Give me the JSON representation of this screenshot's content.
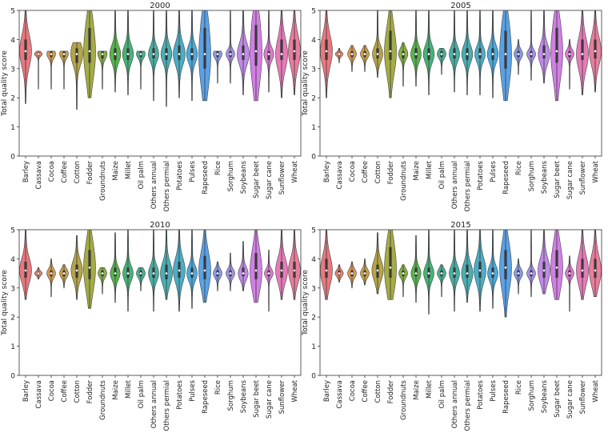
{
  "figure": {
    "ylabel": "Total quality score"
  },
  "chart_data": [
    {
      "type": "violin",
      "title": "2000",
      "ylabel": "Total quality score",
      "ylim": [
        0,
        5
      ],
      "yticks": [
        0,
        1,
        2,
        3,
        4,
        5
      ],
      "grid": false,
      "categories": [
        "Barley",
        "Cassava",
        "Cocoa",
        "Coffee",
        "Cotton",
        "Fodder",
        "Groundnuts",
        "Maize",
        "Millet",
        "Oil palm",
        "Others annual",
        "Others permial",
        "Potatoes",
        "Pulses",
        "Rapeseed",
        "Rice",
        "Sorghum",
        "Soybeans",
        "Sugar beet",
        "Sugar cane",
        "Sunflower",
        "Wheat"
      ],
      "min": [
        1.8,
        2.3,
        2.3,
        2.3,
        1.6,
        2.0,
        2.3,
        2.2,
        2.1,
        2.3,
        1.9,
        1.7,
        2.0,
        1.9,
        1.9,
        2.5,
        2.5,
        2.1,
        1.9,
        2.2,
        2.0,
        2.1
      ],
      "max": [
        5,
        3.6,
        3.6,
        3.6,
        3.9,
        5,
        3.6,
        5,
        5,
        3.6,
        5,
        5,
        5,
        5,
        5,
        3.6,
        5,
        5,
        5,
        5,
        5,
        5
      ],
      "median": [
        3.6,
        3.5,
        3.5,
        3.5,
        3.5,
        3.6,
        3.5,
        3.5,
        3.5,
        3.5,
        3.5,
        3.5,
        3.5,
        3.5,
        3.5,
        3.5,
        3.5,
        3.5,
        3.6,
        3.5,
        3.5,
        3.6
      ],
      "q1": [
        3.3,
        3.45,
        3.4,
        3.4,
        3.2,
        3.2,
        3.35,
        3.3,
        3.3,
        3.4,
        3.35,
        3.3,
        3.3,
        3.3,
        3.0,
        3.4,
        3.4,
        3.3,
        3.1,
        3.3,
        3.3,
        3.3
      ],
      "q3": [
        4.0,
        3.55,
        3.6,
        3.6,
        3.7,
        4.4,
        3.6,
        3.7,
        3.7,
        3.6,
        3.7,
        3.7,
        3.8,
        3.7,
        4.4,
        3.6,
        3.6,
        3.8,
        4.5,
        3.6,
        4.0,
        4.0
      ]
    },
    {
      "type": "violin",
      "title": "2005",
      "ylabel": "Total quality score",
      "ylim": [
        0,
        5
      ],
      "yticks": [
        0,
        1,
        2,
        3,
        4,
        5
      ],
      "grid": false,
      "categories": [
        "Barley",
        "Cassava",
        "Cocoa",
        "Coffee",
        "Cotton",
        "Fodder",
        "Groundnuts",
        "Maize",
        "Millet",
        "Oil palm",
        "Others annual",
        "Others permial",
        "Potatoes",
        "Pulses",
        "Rapeseed",
        "Rice",
        "Sorghum",
        "Soybeans",
        "Sugar beet",
        "Sugar cane",
        "Sunflower",
        "Wheat"
      ],
      "min": [
        2.0,
        3.2,
        2.9,
        2.9,
        2.7,
        2.0,
        2.4,
        2.4,
        2.1,
        2.8,
        2.2,
        2.1,
        2.1,
        2.0,
        1.9,
        2.8,
        2.6,
        2.5,
        1.9,
        2.3,
        2.1,
        2.2
      ],
      "max": [
        5,
        3.7,
        3.8,
        3.8,
        5,
        5,
        3.9,
        5,
        5,
        3.7,
        5,
        5,
        5,
        5,
        5,
        4.0,
        5,
        5,
        5,
        4.0,
        5,
        5
      ],
      "median": [
        3.6,
        3.5,
        3.5,
        3.5,
        3.5,
        3.6,
        3.5,
        3.5,
        3.5,
        3.5,
        3.5,
        3.5,
        3.5,
        3.5,
        3.5,
        3.5,
        3.5,
        3.5,
        3.6,
        3.5,
        3.5,
        3.6
      ],
      "q1": [
        3.3,
        3.45,
        3.4,
        3.4,
        3.35,
        3.3,
        3.35,
        3.35,
        3.3,
        3.4,
        3.35,
        3.3,
        3.35,
        3.3,
        3.0,
        3.4,
        3.4,
        3.35,
        3.2,
        3.4,
        3.3,
        3.35
      ],
      "q3": [
        4.0,
        3.55,
        3.6,
        3.6,
        3.7,
        4.3,
        3.6,
        3.7,
        3.7,
        3.6,
        3.7,
        3.7,
        3.7,
        3.7,
        4.3,
        3.6,
        3.6,
        3.8,
        4.4,
        3.6,
        4.0,
        4.0
      ]
    },
    {
      "type": "violin",
      "title": "2010",
      "ylabel": "Total quality score",
      "ylim": [
        0,
        5
      ],
      "yticks": [
        0,
        1,
        2,
        3,
        4,
        5
      ],
      "grid": false,
      "categories": [
        "Barley",
        "Cassava",
        "Cocoa",
        "Coffee",
        "Cotton",
        "Fodder",
        "Groundnuts",
        "Maize",
        "Millet",
        "Oil palm",
        "Others annual",
        "Others permial",
        "Potatoes",
        "Pulses",
        "Rapeseed",
        "Rice",
        "Sorghum",
        "Soybeans",
        "Sugar beet",
        "Sugar cane",
        "Sunflower",
        "Wheat"
      ],
      "min": [
        2.6,
        3.3,
        2.7,
        3.0,
        2.6,
        2.3,
        2.8,
        2.5,
        2.2,
        2.9,
        2.2,
        2.6,
        2.2,
        2.3,
        2.5,
        2.9,
        2.9,
        2.9,
        2.5,
        2.2,
        2.6,
        2.6
      ],
      "max": [
        5,
        3.7,
        4.0,
        3.8,
        4.8,
        5,
        3.7,
        4.9,
        5,
        3.7,
        5,
        5,
        5,
        5,
        5,
        3.9,
        4.2,
        4.6,
        5,
        4.3,
        5,
        5
      ],
      "median": [
        3.6,
        3.5,
        3.5,
        3.5,
        3.6,
        3.7,
        3.5,
        3.5,
        3.5,
        3.5,
        3.5,
        3.5,
        3.6,
        3.5,
        3.6,
        3.5,
        3.5,
        3.5,
        3.6,
        3.5,
        3.6,
        3.6
      ],
      "q1": [
        3.35,
        3.45,
        3.4,
        3.4,
        3.35,
        3.3,
        3.4,
        3.4,
        3.35,
        3.4,
        3.35,
        3.3,
        3.35,
        3.35,
        3.3,
        3.4,
        3.4,
        3.4,
        3.3,
        3.4,
        3.35,
        3.35
      ],
      "q3": [
        3.9,
        3.55,
        3.6,
        3.6,
        3.8,
        4.3,
        3.6,
        3.7,
        3.7,
        3.6,
        3.7,
        3.8,
        3.9,
        3.7,
        4.1,
        3.6,
        3.6,
        3.7,
        4.2,
        3.6,
        3.9,
        3.9
      ]
    },
    {
      "type": "violin",
      "title": "2015",
      "ylabel": "Total quality score",
      "ylim": [
        0,
        5
      ],
      "yticks": [
        0,
        1,
        2,
        3,
        4,
        5
      ],
      "grid": false,
      "categories": [
        "Barley",
        "Cassava",
        "Cocoa",
        "Coffee",
        "Cotton",
        "Fodder",
        "Groundnuts",
        "Maize",
        "Millet",
        "Oil palm",
        "Others annual",
        "Others permial",
        "Potatoes",
        "Pulses",
        "Rapeseed",
        "Rice",
        "Sorghum",
        "Soybeans",
        "Sugar beet",
        "Sugar cane",
        "Sunflower",
        "Wheat"
      ],
      "min": [
        2.6,
        3.2,
        3.0,
        3.1,
        2.8,
        2.6,
        2.7,
        2.5,
        2.1,
        2.7,
        2.2,
        2.5,
        2.2,
        2.3,
        2.0,
        2.8,
        2.7,
        2.8,
        2.6,
        2.2,
        2.6,
        2.7
      ],
      "max": [
        5,
        3.8,
        3.9,
        4.0,
        4.9,
        5,
        3.8,
        4.8,
        5,
        3.8,
        5,
        5,
        5,
        5,
        5,
        4.0,
        5,
        5,
        5,
        4.1,
        5,
        5
      ],
      "median": [
        3.6,
        3.5,
        3.5,
        3.5,
        3.6,
        3.7,
        3.5,
        3.5,
        3.5,
        3.5,
        3.5,
        3.5,
        3.6,
        3.5,
        3.7,
        3.5,
        3.5,
        3.6,
        3.7,
        3.5,
        3.6,
        3.6
      ],
      "q1": [
        3.35,
        3.45,
        3.4,
        3.4,
        3.35,
        3.35,
        3.4,
        3.4,
        3.35,
        3.4,
        3.35,
        3.35,
        3.35,
        3.35,
        3.3,
        3.4,
        3.4,
        3.35,
        3.35,
        3.4,
        3.35,
        3.35
      ],
      "q3": [
        4.0,
        3.6,
        3.6,
        3.6,
        3.8,
        4.4,
        3.6,
        3.7,
        3.7,
        3.6,
        3.7,
        3.8,
        3.9,
        3.7,
        4.3,
        3.6,
        3.6,
        3.9,
        4.3,
        3.6,
        4.0,
        4.0
      ]
    }
  ],
  "palette": [
    "#e8787f",
    "#e5836a",
    "#d99a52",
    "#c8a04a",
    "#b5a548",
    "#a4ac43",
    "#86b245",
    "#57b54e",
    "#45b478",
    "#48b293",
    "#49b0a5",
    "#4aafb4",
    "#4cadc5",
    "#4aaadc",
    "#5aa2e6",
    "#8a9aea",
    "#a792ea",
    "#c08ae8",
    "#d27fe5",
    "#e07ad3",
    "#e77ab8",
    "#e87d9d"
  ]
}
